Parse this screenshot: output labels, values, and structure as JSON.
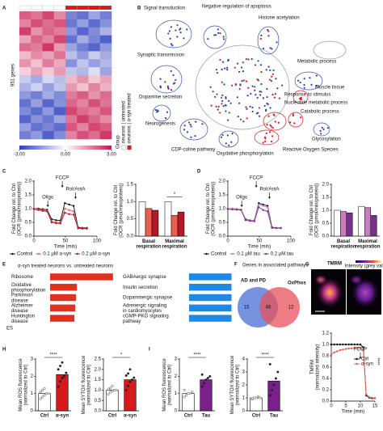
{
  "chart_data": [
    {
      "type": "heatmap",
      "panel": "A",
      "ylabel": "951 genes",
      "legend_title": "Group",
      "groups": [
        "neurons | untreated",
        "neurons | α-syn treated"
      ],
      "group_colors": [
        "#ffffff",
        "#d7191c"
      ],
      "column_groups": [
        0,
        0,
        0,
        0,
        1,
        1,
        1,
        1
      ],
      "clim": [
        -3,
        3
      ],
      "colorbar_ticks": [
        {
          "value": -3,
          "label": "-3.00"
        },
        {
          "value": 0,
          "label": "0.00"
        },
        {
          "value": 3,
          "label": "3.00"
        }
      ],
      "values": [
        [
          2.1,
          1.8,
          2.4,
          1.5,
          -1.9,
          -2.2,
          -1.4,
          -2.0
        ],
        [
          1.6,
          2.3,
          1.9,
          2.2,
          -2.1,
          -1.5,
          -2.3,
          -1.7
        ],
        [
          2.5,
          1.4,
          2.0,
          1.7,
          -1.6,
          -2.4,
          -1.8,
          -1.2
        ],
        [
          1.2,
          2.0,
          1.6,
          2.4,
          -2.2,
          -1.3,
          -1.9,
          -2.5
        ],
        [
          1.9,
          1.7,
          2.6,
          1.3,
          -1.4,
          -2.0,
          -2.4,
          -1.6
        ],
        [
          0.9,
          1.5,
          1.2,
          1.8,
          -1.0,
          -1.6,
          -0.8,
          -1.3
        ],
        [
          1.4,
          0.8,
          1.7,
          1.1,
          -1.7,
          -0.9,
          -1.5,
          -1.1
        ],
        [
          0.6,
          1.2,
          0.7,
          1.3,
          -0.9,
          -1.1,
          -0.5,
          -1.4
        ],
        [
          -0.8,
          -1.3,
          -0.6,
          -1.0,
          0.9,
          1.4,
          0.7,
          1.2
        ],
        [
          -1.2,
          -0.7,
          -1.5,
          -0.9,
          1.3,
          0.8,
          1.6,
          1.0
        ],
        [
          -1.6,
          -2.0,
          -1.3,
          -1.8,
          1.7,
          2.1,
          1.4,
          1.9
        ],
        [
          -2.2,
          -1.5,
          -2.4,
          -1.7,
          2.0,
          1.6,
          2.3,
          1.8
        ],
        [
          -1.8,
          -2.3,
          -1.6,
          -2.5,
          2.4,
          1.9,
          1.7,
          2.2
        ],
        [
          -2.4,
          -1.7,
          -2.1,
          -1.4,
          1.8,
          2.5,
          2.0,
          1.5
        ],
        [
          -1.5,
          -2.2,
          -1.9,
          -2.3,
          2.2,
          1.6,
          2.4,
          2.1
        ],
        [
          -2.0,
          -1.6,
          -2.5,
          -1.8,
          1.6,
          2.3,
          1.9,
          2.6
        ]
      ]
    },
    {
      "type": "network",
      "panel": "B",
      "labels": [
        {
          "text": "Signal transduction",
          "color": "#2b3fb3"
        },
        {
          "text": "Negative regulation of apoptosis",
          "color": "#2b3fb3"
        },
        {
          "text": "Histone acetylation",
          "color": "#2b3fb3"
        },
        {
          "text": "Synaptic transmission",
          "color": "#2b3fb3"
        },
        {
          "text": "Metabolic process",
          "color": "#777777"
        },
        {
          "text": "Muscle tissue",
          "color": "#2b3fb3"
        },
        {
          "text": "Dopamine secretion",
          "color": "#2b3fb3"
        },
        {
          "text": "Response to stimulus",
          "color": "#d7191c"
        },
        {
          "text": "Nucleotide metabolic process",
          "color": "#2b3fb3"
        },
        {
          "text": "Catabolic process",
          "color": "#d7191c"
        },
        {
          "text": "Neurogenesis",
          "color": "#2b3fb3"
        },
        {
          "text": "Glycosylation",
          "color": "#2b3fb3"
        },
        {
          "text": "CDP-coline pathway",
          "color": "#2b3fb3"
        },
        {
          "text": "Oxydative phosphorylation",
          "color": "#d7191c"
        },
        {
          "text": "Reactive Oxygen Species",
          "color": "#d7191c"
        }
      ]
    },
    {
      "type": "line",
      "panel": "C",
      "ylabel": [
        "Fold Change rel. to Ctrl",
        "(OCR (pmol/min/protein))"
      ],
      "xlabel": "Time (min)",
      "x": [
        0,
        7,
        14,
        21,
        28,
        35,
        42,
        49,
        56,
        63,
        70,
        77,
        84
      ],
      "xlim": [
        0,
        100
      ],
      "xticks": [
        0,
        50,
        100
      ],
      "ylim": [
        0,
        2
      ],
      "yticks": [
        {
          "value": 0,
          "label": "0.0"
        },
        {
          "value": 0.5,
          "label": "0.5"
        },
        {
          "value": 1,
          "label": "1.0"
        },
        {
          "value": 1.5,
          "label": "1.5"
        },
        {
          "value": 2,
          "label": "2.0"
        }
      ],
      "annotations": [
        {
          "text": "Oligo",
          "x": 22
        },
        {
          "text": "FCCP",
          "x": 45
        },
        {
          "text": "Rot/AntA",
          "x": 66
        }
      ],
      "legend": "below",
      "series": [
        {
          "name": "Control",
          "color": "#111111",
          "values": [
            1.0,
            1.0,
            0.98,
            0.96,
            0.62,
            0.58,
            0.57,
            1.2,
            1.15,
            1.1,
            0.32,
            0.3,
            0.3
          ]
        },
        {
          "name": "0.1 µM α-syn",
          "color": "#e8604f",
          "values": [
            1.0,
            0.98,
            0.95,
            0.92,
            0.55,
            0.5,
            0.5,
            1.0,
            0.95,
            0.9,
            0.3,
            0.28,
            0.28
          ]
        },
        {
          "name": "0.2 µM α-syn",
          "color": "#b2182b",
          "values": [
            0.98,
            0.95,
            0.92,
            0.9,
            0.5,
            0.47,
            0.46,
            0.85,
            0.8,
            0.78,
            0.28,
            0.27,
            0.27
          ]
        }
      ]
    },
    {
      "type": "bar",
      "ylabel": [
        "Fold Change rel. to Ctrl",
        "(OCR (pmol/min/protein))"
      ],
      "categories": [
        "Basal respiration",
        "Maximal respiration"
      ],
      "ylim": [
        0,
        1.5
      ],
      "yticks": [
        {
          "value": 0,
          "label": "0.0"
        },
        {
          "value": 0.5,
          "label": "0.5"
        },
        {
          "value": 1,
          "label": "1.0"
        },
        {
          "value": 1.5,
          "label": "1.5"
        }
      ],
      "significance": {
        "text": "*",
        "category": 1
      },
      "series": [
        {
          "color": "#ffffff",
          "values": [
            1.0,
            1.0
          ]
        },
        {
          "color": "#e8604f",
          "values": [
            0.8,
            0.6
          ]
        },
        {
          "color": "#b2182b",
          "values": [
            0.75,
            0.7
          ]
        }
      ]
    },
    {
      "type": "line",
      "panel": "D",
      "ylabel": [
        "Fold Change rel. to Ctrl",
        "(OCR (pmol/min/protein))"
      ],
      "xlabel": "Time (min)",
      "x": [
        0,
        7,
        14,
        21,
        28,
        35,
        42,
        49,
        56,
        63,
        70,
        77,
        84
      ],
      "xlim": [
        0,
        100
      ],
      "xticks": [
        0,
        50,
        100
      ],
      "ylim": [
        0,
        2
      ],
      "yticks": [
        {
          "value": 0,
          "label": "0.0"
        },
        {
          "value": 0.5,
          "label": "0.5"
        },
        {
          "value": 1,
          "label": "1.0"
        },
        {
          "value": 1.5,
          "label": "1.5"
        },
        {
          "value": 2,
          "label": "2.0"
        }
      ],
      "annotations": [
        {
          "text": "Oligo",
          "x": 22
        },
        {
          "text": "FCCP",
          "x": 45
        },
        {
          "text": "Rot/AntA",
          "x": 66
        }
      ],
      "legend": "below",
      "series": [
        {
          "name": "Control",
          "color": "#111111",
          "values": [
            1.0,
            1.0,
            0.98,
            0.96,
            0.62,
            0.58,
            0.57,
            1.2,
            1.15,
            1.1,
            0.32,
            0.3,
            0.3
          ]
        },
        {
          "name": "0.1 µM tau",
          "color": "#c77dbf",
          "values": [
            1.0,
            1.0,
            0.99,
            0.97,
            0.6,
            0.58,
            0.57,
            1.15,
            1.1,
            1.05,
            0.3,
            0.3,
            0.3
          ]
        },
        {
          "name": "0.2 µM tau",
          "color": "#7b2d8e",
          "values": [
            0.98,
            0.97,
            0.96,
            0.95,
            0.58,
            0.55,
            0.54,
            1.05,
            0.95,
            0.9,
            0.3,
            0.29,
            0.29
          ]
        }
      ]
    },
    {
      "type": "bar",
      "ylabel": [
        "Fold Change rel. to Ctrl",
        "(OCR (pmol/min/protein))"
      ],
      "categories": [
        "Basal respiration",
        "Maximal respiration"
      ],
      "ylim": [
        0,
        2
      ],
      "yticks": [
        {
          "value": 0,
          "label": "0.0"
        },
        {
          "value": 0.5,
          "label": "0.5"
        },
        {
          "value": 1,
          "label": "1.0"
        },
        {
          "value": 1.5,
          "label": "1.5"
        },
        {
          "value": 2,
          "label": "2.0"
        }
      ],
      "series": [
        {
          "color": "#ffffff",
          "values": [
            1.0,
            1.15
          ]
        },
        {
          "color": "#c77dbf",
          "values": [
            0.95,
            1.1
          ]
        },
        {
          "color": "#7b2d8e",
          "values": [
            0.9,
            0.8
          ]
        }
      ]
    },
    {
      "type": "hbar",
      "panel": "E",
      "title": "α-syn treated neurons vs. untreated neurons",
      "xlabel": "ES",
      "color": "#e0301e",
      "categories": [
        "Ribosome",
        "Oxidative phosphorylation",
        "Parkinson disease",
        "Alzheimer disease",
        "Huntington disease"
      ],
      "values": [
        75,
        32,
        31,
        30,
        29
      ],
      "xlim": [
        0,
        80
      ]
    },
    {
      "type": "hbar",
      "color": "#1e88e5",
      "categories": [
        "GABAergic synapse",
        "Insulin secretion",
        "Dopaminergic synapse",
        "Adrenergic signaling in cardiomyocytes",
        "cGMP-PKG signaling pathway"
      ],
      "values": [
        75,
        75,
        75,
        75,
        75
      ],
      "xlim": [
        0,
        80
      ]
    },
    {
      "type": "venn",
      "panel": "F",
      "title": "Genes in associated pathways",
      "sets": [
        "AD and PD",
        "OxPhos"
      ],
      "values": [
        15,
        46,
        12
      ],
      "colors": [
        "#4a6fd6",
        "#e8505b"
      ]
    },
    {
      "type": "image",
      "panel": "G",
      "title": "TMRM",
      "labels": [
        "Ctrl",
        "α-syn"
      ],
      "colorbar_title": "Intensity (grey values)"
    },
    {
      "type": "line",
      "ylabel": [
        "TMRM",
        "(normalized intensity)"
      ],
      "xlabel": "Time (min)",
      "x": [
        0,
        1,
        2,
        3,
        4,
        5,
        6,
        7,
        8,
        9,
        10,
        11,
        12,
        13,
        14,
        15
      ],
      "xlim": [
        0,
        15
      ],
      "xticks": [
        0,
        5,
        10,
        15
      ],
      "ylim": [
        0,
        1.2
      ],
      "yticks": [
        {
          "value": 0,
          "label": "0.0"
        },
        {
          "value": 0.2,
          "label": "0.2"
        },
        {
          "value": 0.4,
          "label": "0.4"
        },
        {
          "value": 0.6,
          "label": "0.6"
        },
        {
          "value": 0.8,
          "label": "0.8"
        },
        {
          "value": 1,
          "label": "1.0"
        },
        {
          "value": 1.2,
          "label": "1.2"
        }
      ],
      "annotations": [
        {
          "text": "FCCP",
          "x": 10
        }
      ],
      "legend": "inside",
      "significance": "****",
      "series": [
        {
          "name": "Ctrl",
          "color": "#111111",
          "values": [
            1.0,
            1.0,
            1.0,
            1.0,
            1.0,
            1.0,
            1.0,
            1.0,
            1.0,
            1.0,
            1.0,
            0.95,
            0.1,
            0.06,
            0.05,
            0.05
          ]
        },
        {
          "name": "α-syn",
          "color": "#e8604f",
          "values": [
            0.82,
            0.86,
            0.88,
            0.9,
            0.91,
            0.92,
            0.93,
            0.93,
            0.94,
            0.94,
            0.94,
            0.9,
            0.12,
            0.07,
            0.06,
            0.05
          ]
        }
      ]
    },
    {
      "type": "dotbar",
      "panel": "H",
      "ylabel": [
        "Mean ROS fluorescence",
        "(normalized to Ctrl)"
      ],
      "categories": [
        "Ctrl",
        "α-syn"
      ],
      "values": [
        1.0,
        2.1
      ],
      "points": [
        [
          0.7,
          0.8,
          0.9,
          1.0,
          1.0,
          1.1,
          1.2,
          1.3
        ],
        [
          1.4,
          1.7,
          1.9,
          2.0,
          2.2,
          2.4,
          2.6,
          2.8
        ]
      ],
      "colors": [
        "#ffffff",
        "#d7191c"
      ],
      "ylim": [
        0,
        3
      ],
      "yticks": [
        0,
        1,
        2,
        3
      ],
      "significance": "****"
    },
    {
      "type": "dotbar",
      "ylabel": [
        "Mean SYTOX fluorescence",
        "(normalized to Ctrl)"
      ],
      "categories": [
        "Ctrl",
        "α-syn"
      ],
      "values": [
        1.0,
        1.5
      ],
      "points": [
        [
          0.8,
          0.9,
          0.95,
          1.0,
          1.0,
          1.05,
          1.1,
          1.2
        ],
        [
          1.0,
          1.2,
          1.4,
          1.5,
          1.6,
          1.7,
          1.8,
          2.0
        ]
      ],
      "colors": [
        "#ffffff",
        "#d7191c"
      ],
      "ylim": [
        0,
        2.5
      ],
      "yticks": [
        {
          "value": 0,
          "label": "0.0"
        },
        {
          "value": 0.5,
          "label": "0.5"
        },
        {
          "value": 1,
          "label": "1.0"
        },
        {
          "value": 1.5,
          "label": "1.5"
        },
        {
          "value": 2,
          "label": "2.0"
        },
        {
          "value": 2.5,
          "label": "2.5"
        }
      ],
      "significance": "*"
    },
    {
      "type": "dotbar",
      "panel": "I",
      "ylabel": [
        "Mean ROS fluorescence",
        "(normalized to Ctrl)"
      ],
      "categories": [
        "Ctrl",
        "Tau"
      ],
      "values": [
        1.0,
        1.8
      ],
      "points": [
        [
          0.8,
          0.9,
          1.0,
          1.0,
          1.1,
          1.2
        ],
        [
          1.4,
          1.6,
          1.8,
          1.9,
          2.0,
          2.1
        ]
      ],
      "colors": [
        "#ffffff",
        "#7b1f8a"
      ],
      "ylim": [
        0,
        3
      ],
      "yticks": [
        0,
        1,
        2,
        3
      ],
      "significance": "****"
    },
    {
      "type": "dotbar",
      "ylabel": [
        "Mean SYTOX fluorescence",
        "(normalized to Ctrl)"
      ],
      "categories": [
        "Ctrl",
        "Tau"
      ],
      "values": [
        1.0,
        2.3
      ],
      "points": [
        [
          0.9,
          1.0,
          1.0,
          1.1,
          1.0,
          0.95
        ],
        [
          1.2,
          1.6,
          2.0,
          2.5,
          3.0,
          3.6
        ]
      ],
      "colors": [
        "#ffffff",
        "#7b1f8a"
      ],
      "ylim": [
        0,
        4
      ],
      "yticks": [
        0,
        1,
        2,
        3,
        4
      ],
      "significance": "****"
    }
  ]
}
